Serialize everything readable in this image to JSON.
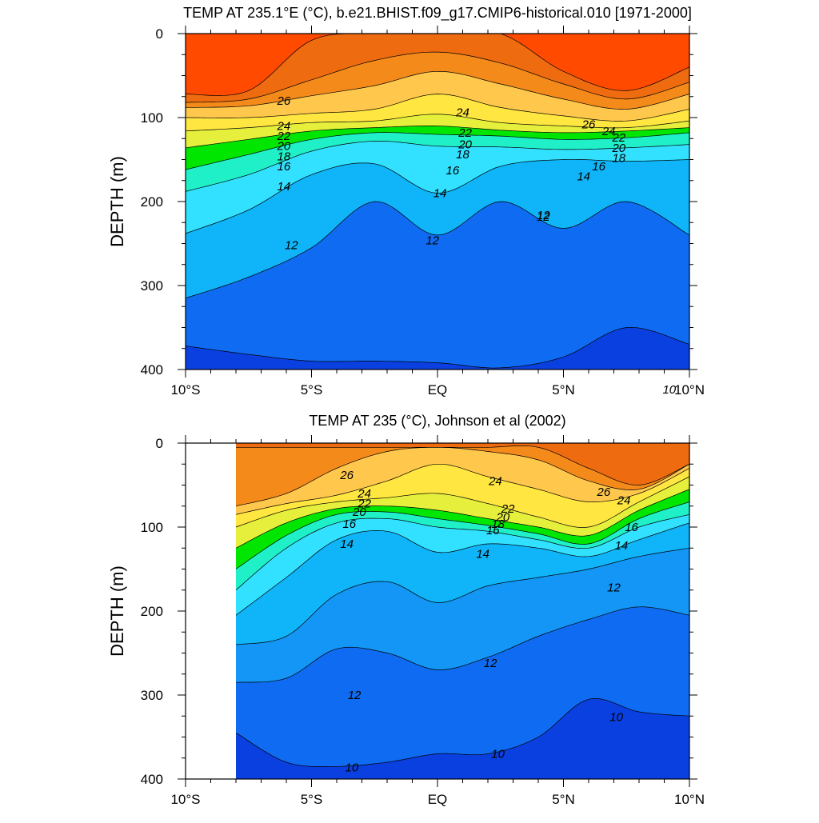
{
  "chart_data": [
    {
      "type": "contour",
      "title": "TEMP AT 235.1°E (°C), b.e21.BHIST.f09_g17.CMIP6-historical.010 [1971-2000]",
      "xlabel": "",
      "ylabel": "DEPTH (m)",
      "xlim": [
        -10,
        10
      ],
      "ylim": [
        400,
        0
      ],
      "xticks": [
        -10,
        -5,
        0,
        5,
        10
      ],
      "xtick_labels": [
        "10°S",
        "5°S",
        "EQ",
        "5°N",
        "10°N"
      ],
      "yticks": [
        0,
        100,
        200,
        300,
        400
      ],
      "ytick_labels": [
        "0",
        "100",
        "200",
        "300",
        "400"
      ],
      "data_x_start": -10,
      "contour_levels": [
        9,
        10,
        11,
        12,
        13,
        14,
        15,
        16,
        17,
        18,
        19,
        20,
        21,
        22,
        23,
        24,
        25,
        26,
        27,
        28
      ],
      "isotherm_depths": {
        "x": [
          -10,
          -7.5,
          -5,
          -2.5,
          0,
          2.5,
          5,
          7.5,
          10
        ],
        "levels": {
          "28": [
            72,
            68,
            8,
            0,
            0,
            0,
            45,
            68,
            40
          ],
          "27": [
            82,
            78,
            55,
            32,
            22,
            35,
            60,
            78,
            58
          ],
          "26": [
            88,
            86,
            74,
            62,
            45,
            60,
            78,
            90,
            72
          ],
          "24": [
            100,
            100,
            95,
            90,
            72,
            88,
            98,
            104,
            90
          ],
          "22": [
            116,
            112,
            106,
            104,
            96,
            106,
            110,
            112,
            104
          ],
          "20": [
            136,
            126,
            116,
            112,
            110,
            115,
            118,
            116,
            112
          ],
          "18": [
            162,
            144,
            126,
            118,
            120,
            122,
            126,
            124,
            118
          ],
          "16": [
            188,
            168,
            140,
            128,
            134,
            135,
            138,
            136,
            132
          ],
          "14": [
            238,
            210,
            168,
            155,
            190,
            158,
            150,
            152,
            150
          ],
          "12": [
            315,
            290,
            255,
            200,
            240,
            200,
            232,
            200,
            240
          ],
          "10": [
            372,
            382,
            390,
            390,
            392,
            398,
            385,
            350,
            370
          ]
        }
      },
      "contour_labels": [
        {
          "text": "26",
          "x": -6.1,
          "y": 80
        },
        {
          "text": "24",
          "x": -6.1,
          "y": 110
        },
        {
          "text": "22",
          "x": -6.1,
          "y": 122
        },
        {
          "text": "20",
          "x": -6.1,
          "y": 134
        },
        {
          "text": "18",
          "x": -6.1,
          "y": 146
        },
        {
          "text": "16",
          "x": -6.1,
          "y": 158
        },
        {
          "text": "14",
          "x": -6.1,
          "y": 182
        },
        {
          "text": "12",
          "x": -5.8,
          "y": 252
        },
        {
          "text": "24",
          "x": 1.0,
          "y": 94
        },
        {
          "text": "22",
          "x": 1.1,
          "y": 118
        },
        {
          "text": "20",
          "x": 1.1,
          "y": 132
        },
        {
          "text": "18",
          "x": 1.0,
          "y": 144
        },
        {
          "text": "16",
          "x": 0.6,
          "y": 163
        },
        {
          "text": "14",
          "x": 0.1,
          "y": 190
        },
        {
          "text": "12",
          "x": -0.2,
          "y": 246
        },
        {
          "text": "12",
          "x": 4.2,
          "y": 216
        },
        {
          "text": "26",
          "x": 6.0,
          "y": 108
        },
        {
          "text": "24",
          "x": 6.8,
          "y": 116
        },
        {
          "text": "22",
          "x": 7.2,
          "y": 124
        },
        {
          "text": "20",
          "x": 7.2,
          "y": 136
        },
        {
          "text": "18",
          "x": 7.2,
          "y": 148
        },
        {
          "text": "16",
          "x": 6.4,
          "y": 158
        },
        {
          "text": "14",
          "x": 5.8,
          "y": 170
        },
        {
          "text": "12",
          "x": 4.2,
          "y": 218
        },
        {
          "text": "10",
          "x": 9.2,
          "y": 424
        }
      ]
    },
    {
      "type": "contour",
      "title": "TEMP AT 235 (°C), Johnson et al (2002)",
      "xlabel": "",
      "ylabel": "DEPTH (m)",
      "xlim": [
        -10,
        10
      ],
      "ylim": [
        400,
        0
      ],
      "xticks": [
        -10,
        -5,
        0,
        5,
        10
      ],
      "xtick_labels": [
        "10°S",
        "5°S",
        "EQ",
        "5°N",
        "10°N"
      ],
      "yticks": [
        0,
        100,
        200,
        300,
        400
      ],
      "ytick_labels": [
        "0",
        "100",
        "200",
        "300",
        "400"
      ],
      "data_x_start": -8,
      "contour_levels": [
        9,
        10,
        11,
        12,
        13,
        14,
        15,
        16,
        17,
        18,
        19,
        20,
        21,
        22,
        23,
        24,
        25,
        26,
        27,
        28
      ],
      "isotherm_depths": {
        "x": [
          -8,
          -6,
          -4,
          -2,
          0,
          2,
          4,
          6,
          8,
          10
        ],
        "levels": {
          "27": [
            5,
            5,
            5,
            5,
            5,
            5,
            5,
            30,
            50,
            25
          ],
          "26": [
            75,
            60,
            30,
            10,
            5,
            10,
            20,
            45,
            55,
            25
          ],
          "24": [
            85,
            72,
            62,
            45,
            25,
            40,
            55,
            70,
            60,
            30
          ],
          "22": [
            100,
            80,
            70,
            65,
            60,
            72,
            88,
            100,
            70,
            40
          ],
          "20": [
            125,
            95,
            78,
            75,
            80,
            90,
            100,
            110,
            80,
            55
          ],
          "18": [
            150,
            110,
            85,
            82,
            90,
            98,
            108,
            120,
            90,
            70
          ],
          "16": [
            175,
            125,
            95,
            90,
            100,
            105,
            115,
            125,
            100,
            85
          ],
          "14": [
            205,
            160,
            115,
            105,
            130,
            120,
            125,
            135,
            115,
            95
          ],
          "12": [
            240,
            230,
            180,
            165,
            190,
            170,
            160,
            150,
            135,
            125
          ],
          "11": [
            285,
            280,
            245,
            250,
            270,
            255,
            230,
            210,
            195,
            205
          ],
          "10": [
            345,
            380,
            385,
            380,
            370,
            370,
            350,
            305,
            320,
            325
          ]
        }
      },
      "contour_labels": [
        {
          "text": "26",
          "x": -3.6,
          "y": 38
        },
        {
          "text": "24",
          "x": -2.9,
          "y": 60
        },
        {
          "text": "22",
          "x": -2.9,
          "y": 72
        },
        {
          "text": "20",
          "x": -3.1,
          "y": 82
        },
        {
          "text": "16",
          "x": -3.5,
          "y": 96
        },
        {
          "text": "14",
          "x": -3.6,
          "y": 120
        },
        {
          "text": "12",
          "x": -3.3,
          "y": 300
        },
        {
          "text": "24",
          "x": 2.3,
          "y": 45
        },
        {
          "text": "22",
          "x": 2.8,
          "y": 78
        },
        {
          "text": "20",
          "x": 2.6,
          "y": 88
        },
        {
          "text": "18",
          "x": 2.4,
          "y": 96
        },
        {
          "text": "16",
          "x": 2.2,
          "y": 104
        },
        {
          "text": "14",
          "x": 1.8,
          "y": 132
        },
        {
          "text": "12",
          "x": 2.1,
          "y": 262
        },
        {
          "text": "10",
          "x": 2.4,
          "y": 370
        },
        {
          "text": "26",
          "x": 6.6,
          "y": 58
        },
        {
          "text": "24",
          "x": 7.4,
          "y": 68
        },
        {
          "text": "16",
          "x": 7.7,
          "y": 100
        },
        {
          "text": "14",
          "x": 7.3,
          "y": 122
        },
        {
          "text": "12",
          "x": 7.0,
          "y": 172
        },
        {
          "text": "10",
          "x": 7.1,
          "y": 326
        },
        {
          "text": "10",
          "x": -3.4,
          "y": 386
        }
      ]
    }
  ],
  "colors": {
    "levels": [
      "#0a3fe0",
      "#0f6cf2",
      "#1396f5",
      "#0fb5f8",
      "#0ad2ff",
      "#32e1ff",
      "#00f5e8",
      "#20f0c8",
      "#19e26a",
      "#00e600",
      "#92ec3c",
      "#e6f03c",
      "#ffff66",
      "#ffe640",
      "#ffd24a",
      "#ffc74c",
      "#ffa33a",
      "#f48a1a",
      "#ee6b10",
      "#ff4a00"
    ],
    "contour_line": "#000000",
    "blank": "#ffffff"
  }
}
